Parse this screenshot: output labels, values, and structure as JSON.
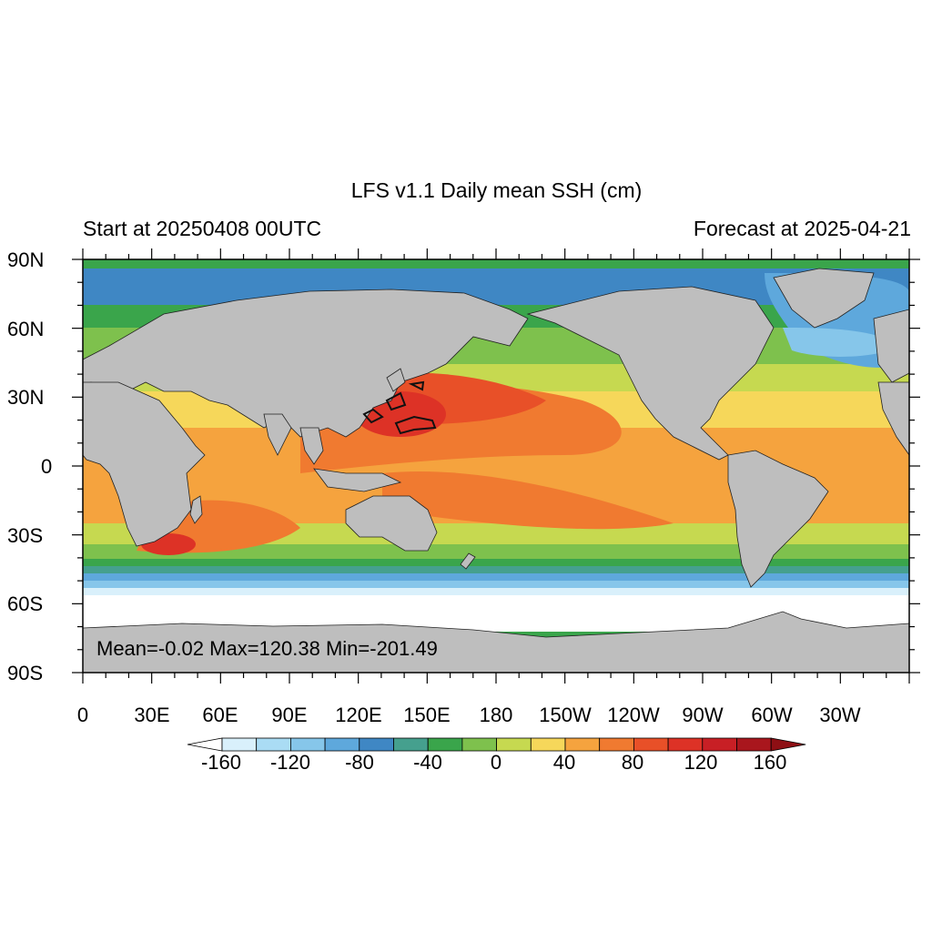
{
  "map": {
    "title": "LFS v1.1 Daily mean SSH (cm)",
    "subtitle_left": "Start at 20250408 00UTC",
    "subtitle_right": "Forecast at 2025-04-21",
    "stats": "Mean=-0.02  Max=120.38  Min=-201.49",
    "lat_labels": [
      "90N",
      "60N",
      "30N",
      "0",
      "30S",
      "60S",
      "90S"
    ],
    "lon_labels": [
      "0",
      "30E",
      "60E",
      "90E",
      "120E",
      "150E",
      "180",
      "150W",
      "120W",
      "90W",
      "60W",
      "30W"
    ],
    "colorbar": {
      "labels": [
        "-160",
        "-120",
        "-80",
        "-40",
        "0",
        "40",
        "80",
        "120",
        "160"
      ],
      "colors": [
        "#d9f0fb",
        "#aadcf4",
        "#86c6ea",
        "#5ea8dc",
        "#3f87c4",
        "#45a08e",
        "#3aa54b",
        "#7ec14d",
        "#c6d950",
        "#f6d75a",
        "#f5a33e",
        "#f07a30",
        "#e85028",
        "#dd3226",
        "#c81f25",
        "#a9161d"
      ],
      "under_color": "#ffffff",
      "over_color": "#8e0f14"
    },
    "land_color": "#bebebe"
  }
}
